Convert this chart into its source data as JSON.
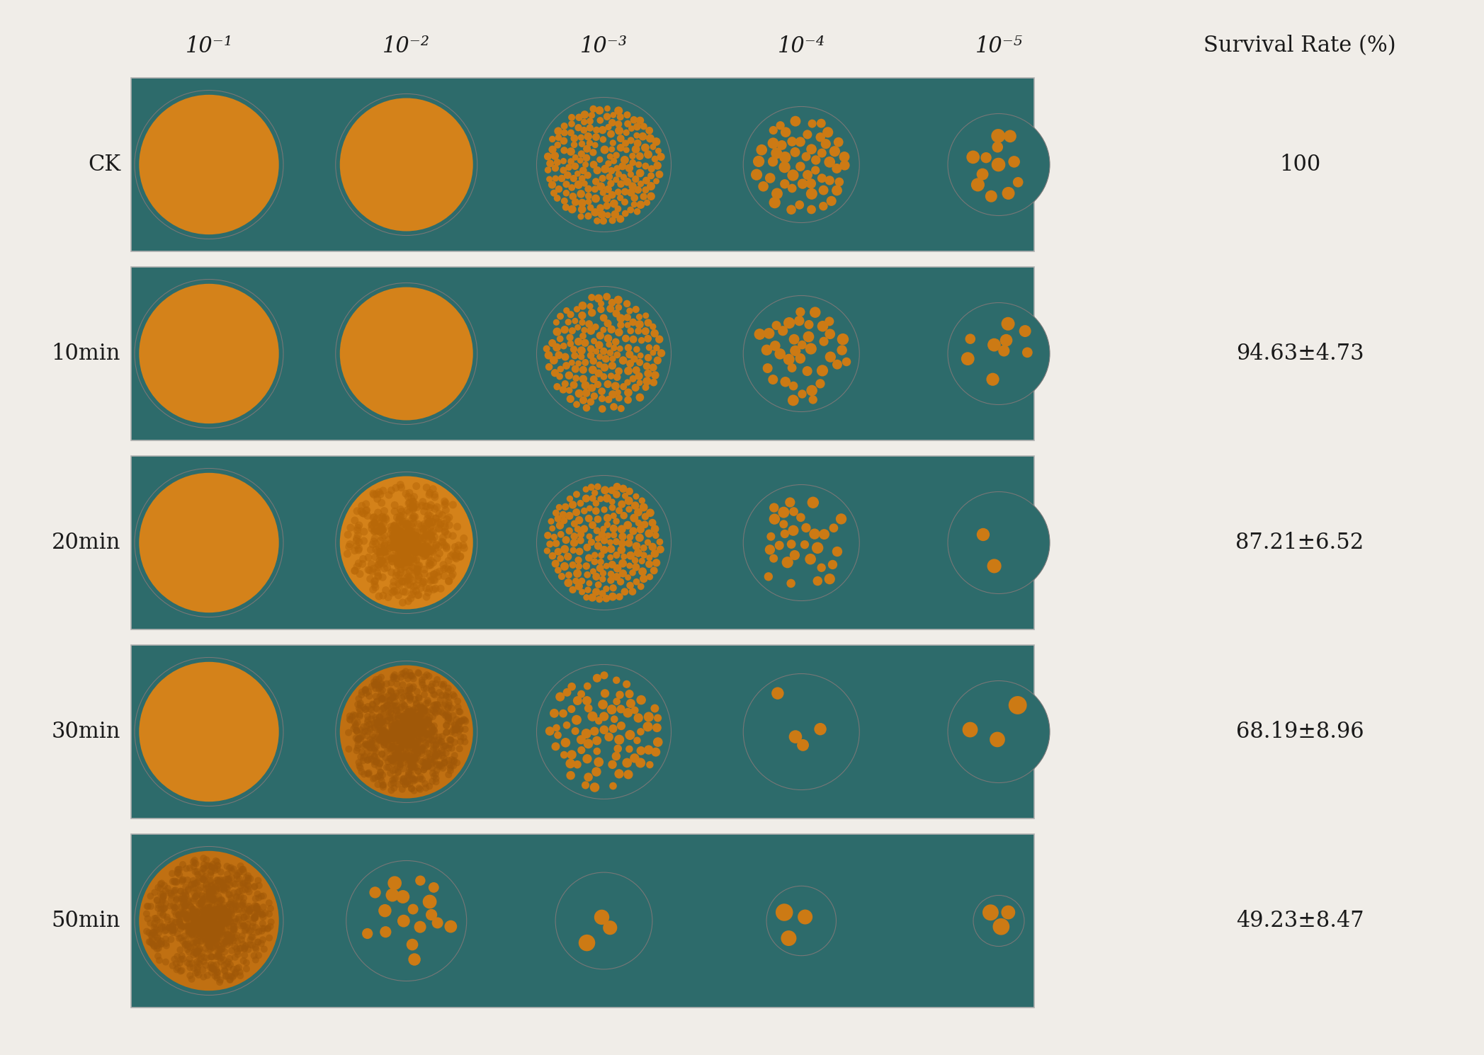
{
  "background_color": "#f0ede8",
  "plate_bg": "#2d6b6b",
  "colony_color_solid": "#d4821a",
  "colony_color_spotted": "#cc7a14",
  "colony_color_dense": "#c8780f",
  "row_labels": [
    "CK",
    "10min",
    "20min",
    "30min",
    "50min"
  ],
  "col_labels": [
    "10⁻¹",
    "10⁻²",
    "10⁻³",
    "10⁻⁴",
    "10⁻⁵"
  ],
  "survival_rates": [
    "100",
    "94.63±4.73",
    "87.21±6.52",
    "68.19±8.96",
    "49.23±8.47"
  ],
  "survival_label": "Survival Rate (%)",
  "fig_width": 20.95,
  "fig_height": 14.9,
  "text_color": "#1a1a1a",
  "panel_edge_color": "#b0b0b0"
}
